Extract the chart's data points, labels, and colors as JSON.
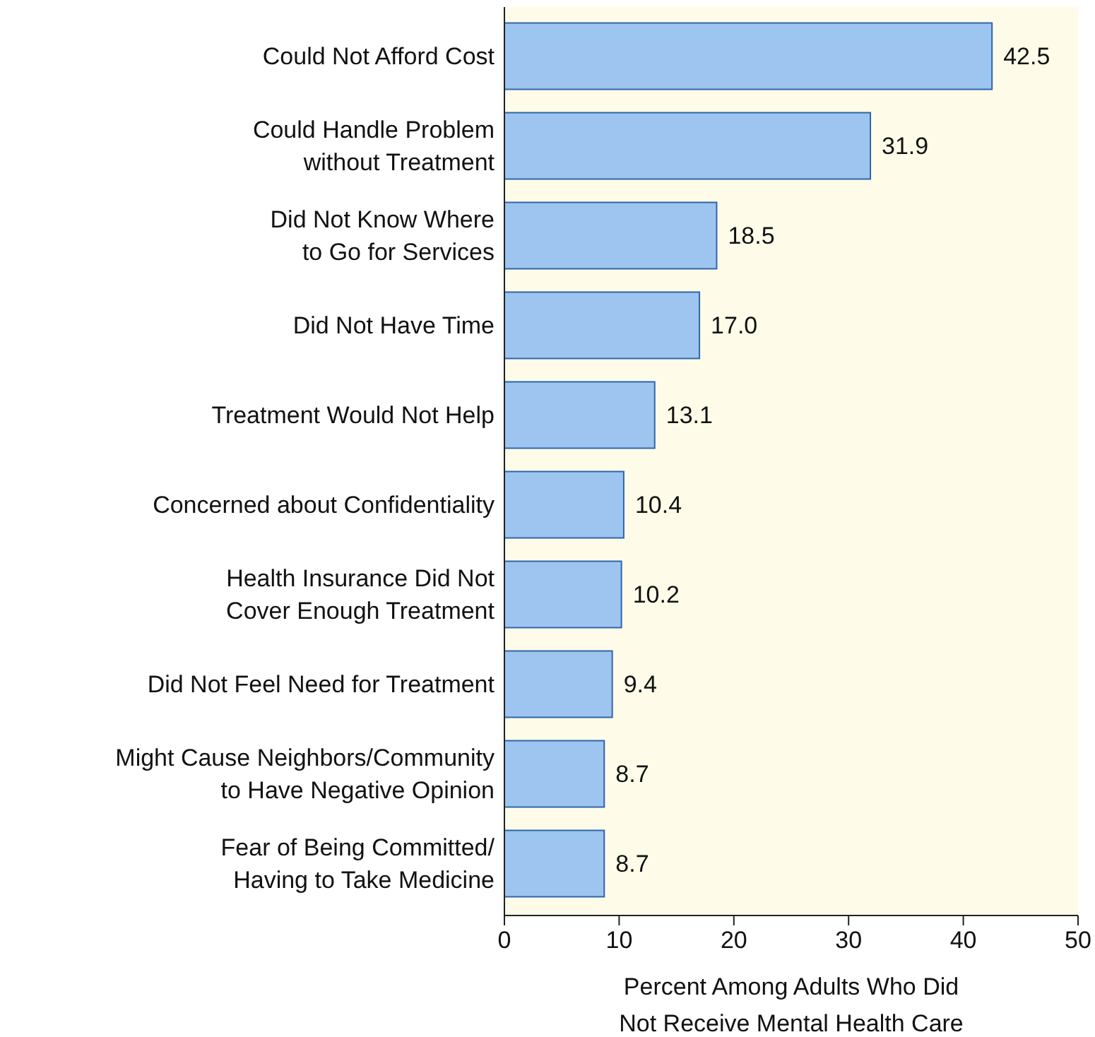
{
  "chart_data": {
    "type": "bar",
    "orientation": "horizontal",
    "categories": [
      "Could Not Afford Cost",
      "Could Handle Problem without Treatment",
      "Did Not Know Where to Go for Services",
      "Did Not Have Time",
      "Treatment Would Not Help",
      "Concerned about Confidentiality",
      "Health Insurance Did Not Cover Enough Treatment",
      "Did Not Feel Need for Treatment",
      "Might Cause Neighbors/Community to Have Negative Opinion",
      "Fear of Being Committed/ Having to Take Medicine"
    ],
    "values": [
      42.5,
      31.9,
      18.5,
      17.0,
      13.1,
      10.4,
      10.2,
      9.4,
      8.7,
      8.7
    ],
    "value_labels": [
      "42.5",
      "31.9",
      "18.5",
      "17.0",
      "13.1",
      "10.4",
      "10.2",
      "9.4",
      "8.7",
      "8.7"
    ],
    "color": "#9ec5ef",
    "xlabel": "Percent Among Adults Who Did Not Receive Mental Health Care",
    "xlim": [
      0,
      50
    ],
    "xticks": [
      0,
      10,
      20,
      30,
      40,
      50
    ],
    "grid": false
  }
}
